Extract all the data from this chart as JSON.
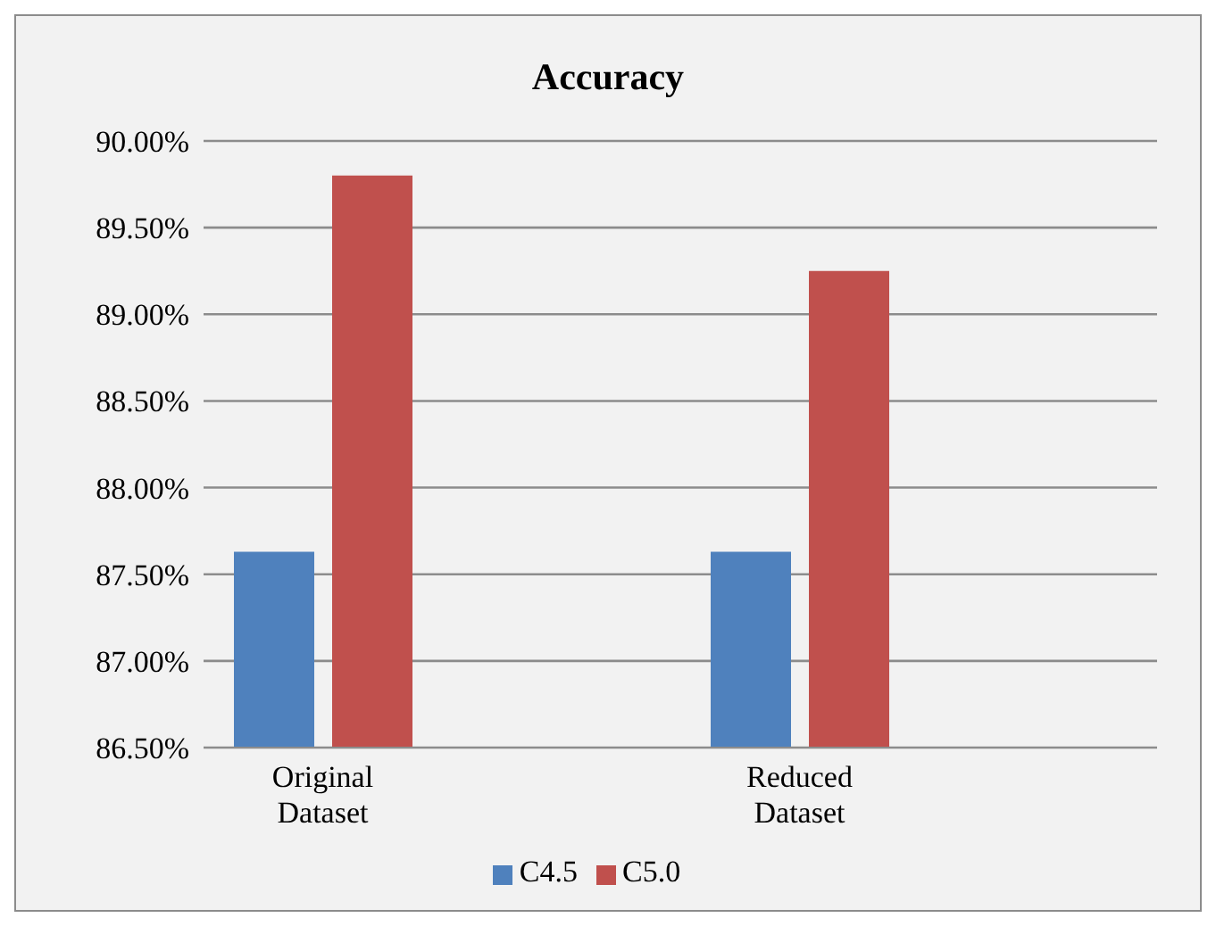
{
  "chart_data": {
    "type": "bar",
    "title": "Accuracy",
    "categories": [
      "Original Dataset",
      null,
      "Reduced Dataset",
      null
    ],
    "series": [
      {
        "name": "C4.5",
        "color": "#4f81bd",
        "values": [
          87.63,
          null,
          87.63,
          null
        ]
      },
      {
        "name": "C5.0",
        "color": "#c0504d",
        "values": [
          89.8,
          null,
          89.25,
          null
        ]
      }
    ],
    "ylim": [
      86.5,
      90
    ],
    "yticks": [
      {
        "value": 86.5,
        "label": "86.50%"
      },
      {
        "value": 87,
        "label": "87.00%"
      },
      {
        "value": 87.5,
        "label": "87.50%"
      },
      {
        "value": 88,
        "label": "88.00%"
      },
      {
        "value": 88.5,
        "label": "88.50%"
      },
      {
        "value": 89,
        "label": "89.00%"
      },
      {
        "value": 89.5,
        "label": "89.50%"
      },
      {
        "value": 90,
        "label": "90.00%"
      }
    ],
    "grid": "y",
    "legend": "bottom"
  }
}
